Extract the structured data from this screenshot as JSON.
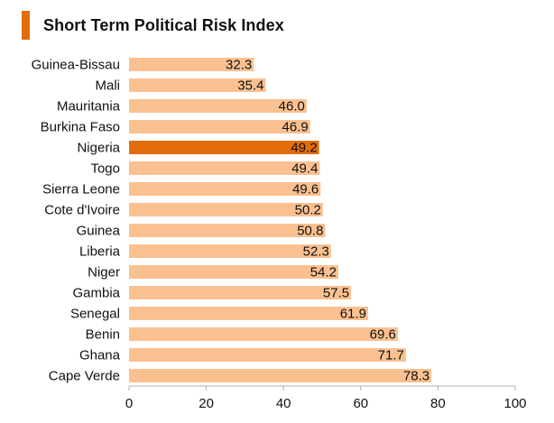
{
  "header": {
    "title": "Short Term Political Risk Index",
    "accent_color": "#e36c0a"
  },
  "chart_data": {
    "type": "bar",
    "orientation": "horizontal",
    "title": "Short Term Political Risk Index",
    "categories": [
      "Guinea-Bissau",
      "Mali",
      "Mauritania",
      "Burkina Faso",
      "Nigeria",
      "Togo",
      "Sierra Leone",
      "Cote d'Ivoire",
      "Guinea",
      "Liberia",
      "Niger",
      "Gambia",
      "Senegal",
      "Benin",
      "Ghana",
      "Cape Verde"
    ],
    "values": [
      32.3,
      35.4,
      46.0,
      46.9,
      49.2,
      49.4,
      49.6,
      50.2,
      50.8,
      52.3,
      54.2,
      57.5,
      61.9,
      69.6,
      71.7,
      78.3
    ],
    "value_labels": [
      "32.3",
      "35.4",
      "46.0",
      "46.9",
      "49.2",
      "49.4",
      "49.6",
      "50.2",
      "50.8",
      "52.3",
      "54.2",
      "57.5",
      "61.9",
      "69.6",
      "71.7",
      "78.3"
    ],
    "highlight_category": "Nigeria",
    "xlim": [
      0,
      100
    ],
    "xticks": [
      0,
      20,
      40,
      60,
      80,
      100
    ],
    "xlabel": "",
    "ylabel": "",
    "grid": false,
    "legend": false,
    "colors": {
      "bar": "#fac090",
      "highlight": "#e36c0a",
      "axis": "#b0b0b0"
    }
  }
}
